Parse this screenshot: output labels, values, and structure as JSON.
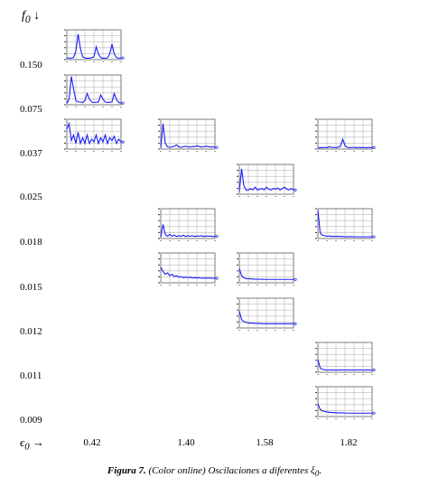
{
  "y_axis": {
    "symbol": "f",
    "subscript": "0",
    "arrow": "↓"
  },
  "x_axis": {
    "symbol": "ϵ",
    "subscript": "0",
    "arrow": "→"
  },
  "row_labels": [
    "0.150",
    "0.075",
    "0.037",
    "0.025",
    "0.018",
    "0.015",
    "0.012",
    "0.011",
    "0.009"
  ],
  "col_labels": [
    "0.42",
    "1.40",
    "1.58",
    "1.82"
  ],
  "caption": {
    "prefix": "Figura 7.",
    "text": "(Color online) Oscilaciones a diferentes ",
    "symbol": "ξ",
    "sub": "0",
    "suffix": "."
  },
  "colors": {
    "line": "#1a1aff",
    "grid": "#b8b8b8",
    "frame": "#555555"
  },
  "chart_data": {
    "type": "line",
    "title": "",
    "description_axes": {
      "rows_variable": "f0",
      "columns_variable": "epsilon0"
    },
    "panels": [
      {
        "id": "p-0.150-0.42",
        "f0": "0.150",
        "eps0": "0.42",
        "kind": "peaks",
        "values": [
          0.05,
          0.06,
          0.05,
          0.08,
          0.3,
          0.9,
          0.4,
          0.1,
          0.06,
          0.05,
          0.05,
          0.07,
          0.1,
          0.45,
          0.2,
          0.07,
          0.05,
          0.05,
          0.06,
          0.2,
          0.55,
          0.2,
          0.07,
          0.05,
          0.06
        ]
      },
      {
        "id": "p-0.075-0.42",
        "f0": "0.075",
        "eps0": "0.42",
        "kind": "peaks",
        "values": [
          0.05,
          0.2,
          1.0,
          0.55,
          0.15,
          0.1,
          0.1,
          0.08,
          0.15,
          0.4,
          0.2,
          0.1,
          0.08,
          0.09,
          0.1,
          0.35,
          0.2,
          0.1,
          0.08,
          0.09,
          0.1,
          0.4,
          0.18,
          0.08,
          0.06
        ]
      },
      {
        "id": "p-0.037-0.42",
        "f0": "0.037",
        "eps0": "0.42",
        "kind": "peaks",
        "values": [
          0.7,
          0.9,
          0.3,
          0.5,
          0.2,
          0.6,
          0.2,
          0.4,
          0.2,
          0.5,
          0.2,
          0.35,
          0.25,
          0.5,
          0.2,
          0.4,
          0.25,
          0.5,
          0.2,
          0.4,
          0.3,
          0.45,
          0.2,
          0.35,
          0.25
        ]
      },
      {
        "id": "p-0.037-1.40",
        "f0": "0.037",
        "eps0": "1.40",
        "kind": "peaks",
        "values": [
          0.05,
          0.9,
          0.2,
          0.08,
          0.06,
          0.08,
          0.1,
          0.15,
          0.08,
          0.06,
          0.08,
          0.1,
          0.08,
          0.07,
          0.09,
          0.08,
          0.12,
          0.09,
          0.07,
          0.08,
          0.1,
          0.09,
          0.07,
          0.08,
          0.06
        ]
      },
      {
        "id": "p-0.037-1.82",
        "f0": "0.037",
        "eps0": "1.82",
        "kind": "peaks",
        "values": [
          0.04,
          0.05,
          0.05,
          0.06,
          0.05,
          0.08,
          0.06,
          0.06,
          0.05,
          0.07,
          0.1,
          0.35,
          0.12,
          0.06,
          0.05,
          0.06,
          0.06,
          0.05,
          0.06,
          0.05,
          0.06,
          0.05,
          0.05,
          0.06,
          0.05
        ]
      },
      {
        "id": "p-0.025-1.58",
        "f0": "0.025",
        "eps0": "1.58",
        "kind": "peaks",
        "values": [
          0.1,
          0.9,
          0.3,
          0.15,
          0.15,
          0.2,
          0.15,
          0.25,
          0.15,
          0.18,
          0.2,
          0.15,
          0.25,
          0.18,
          0.15,
          0.2,
          0.18,
          0.22,
          0.15,
          0.2,
          0.25,
          0.18,
          0.15,
          0.2,
          0.15
        ]
      },
      {
        "id": "p-0.018-1.40",
        "f0": "0.018",
        "eps0": "1.40",
        "kind": "peaks",
        "values": [
          0.05,
          0.5,
          0.15,
          0.08,
          0.15,
          0.08,
          0.12,
          0.07,
          0.1,
          0.08,
          0.12,
          0.07,
          0.1,
          0.08,
          0.1,
          0.07,
          0.09,
          0.08,
          0.1,
          0.07,
          0.09,
          0.08,
          0.09,
          0.07,
          0.08
        ]
      },
      {
        "id": "p-0.018-1.82",
        "f0": "0.018",
        "eps0": "1.82",
        "kind": "decay",
        "values": [
          1.0,
          0.2,
          0.12,
          0.1,
          0.08,
          0.09,
          0.07,
          0.08,
          0.07,
          0.08,
          0.07,
          0.07,
          0.06,
          0.07,
          0.06,
          0.07,
          0.06,
          0.06,
          0.06,
          0.06,
          0.06,
          0.06,
          0.06,
          0.06,
          0.06
        ]
      },
      {
        "id": "p-0.015-1.40",
        "f0": "0.015",
        "eps0": "1.40",
        "kind": "decay",
        "values": [
          0.55,
          0.4,
          0.3,
          0.35,
          0.25,
          0.3,
          0.22,
          0.25,
          0.2,
          0.22,
          0.18,
          0.2,
          0.18,
          0.2,
          0.17,
          0.18,
          0.17,
          0.18,
          0.16,
          0.17,
          0.16,
          0.17,
          0.16,
          0.16,
          0.16
        ]
      },
      {
        "id": "p-0.015-1.58",
        "f0": "0.015",
        "eps0": "1.58",
        "kind": "decay",
        "values": [
          0.5,
          0.25,
          0.18,
          0.15,
          0.14,
          0.14,
          0.13,
          0.13,
          0.13,
          0.12,
          0.13,
          0.12,
          0.12,
          0.12,
          0.12,
          0.12,
          0.12,
          0.12,
          0.12,
          0.12,
          0.12,
          0.12,
          0.12,
          0.12,
          0.12
        ]
      },
      {
        "id": "p-0.012-1.58",
        "f0": "0.012",
        "eps0": "1.58",
        "kind": "decay",
        "values": [
          0.6,
          0.3,
          0.22,
          0.2,
          0.18,
          0.17,
          0.17,
          0.16,
          0.16,
          0.16,
          0.15,
          0.15,
          0.15,
          0.15,
          0.15,
          0.15,
          0.15,
          0.15,
          0.15,
          0.15,
          0.15,
          0.15,
          0.15,
          0.15,
          0.15
        ]
      },
      {
        "id": "p-0.011-1.82",
        "f0": "0.011",
        "eps0": "1.82",
        "kind": "decay",
        "values": [
          0.45,
          0.15,
          0.1,
          0.09,
          0.08,
          0.08,
          0.08,
          0.08,
          0.08,
          0.08,
          0.08,
          0.08,
          0.08,
          0.08,
          0.08,
          0.08,
          0.08,
          0.08,
          0.08,
          0.08,
          0.08,
          0.08,
          0.08,
          0.08,
          0.08
        ]
      },
      {
        "id": "p-0.009-1.82",
        "f0": "0.009",
        "eps0": "1.82",
        "kind": "decay",
        "values": [
          0.45,
          0.25,
          0.2,
          0.18,
          0.16,
          0.15,
          0.14,
          0.14,
          0.13,
          0.13,
          0.13,
          0.13,
          0.12,
          0.12,
          0.12,
          0.12,
          0.12,
          0.12,
          0.12,
          0.12,
          0.12,
          0.12,
          0.12,
          0.12,
          0.12
        ]
      }
    ]
  }
}
